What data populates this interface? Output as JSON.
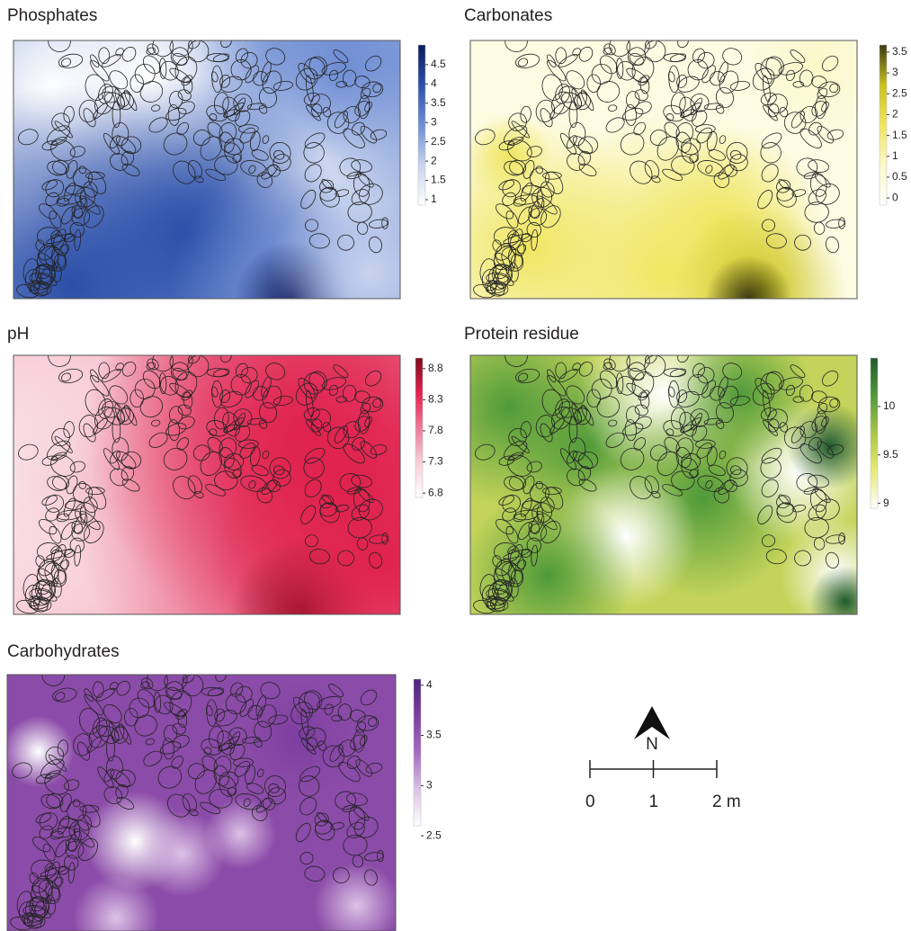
{
  "panels": [
    {
      "title": "Phosphates",
      "colorbar": {
        "lim": [
          0.86,
          5.01
        ],
        "ticks": [
          4.5,
          4,
          3.5,
          3,
          2.5,
          2,
          1.5,
          1
        ]
      }
    },
    {
      "title": "Carbonates",
      "colorbar": {
        "lim": [
          -0.17,
          3.67
        ],
        "ticks": [
          3.5,
          3,
          2.5,
          2,
          1.5,
          1,
          0.5,
          0
        ]
      }
    },
    {
      "title": "pH",
      "colorbar": {
        "lim": [
          6.73,
          8.97
        ],
        "ticks": [
          8.8,
          8.3,
          7.8,
          7.3,
          6.8
        ]
      }
    },
    {
      "title": "Protein residue",
      "colorbar": {
        "lim": [
          8.95,
          10.5
        ],
        "ticks": [
          10,
          9.5,
          9
        ]
      }
    },
    {
      "title": "Carbohydrates",
      "colorbar": {
        "lim": [
          2.6,
          4.06
        ],
        "ticks": [
          4,
          3.5,
          3,
          2.5
        ]
      }
    }
  ],
  "north": "N",
  "scale_bar": {
    "lim": [
      0,
      2
    ],
    "ticks": [
      0,
      1,
      {
        "value": 2,
        "label": "2 m"
      }
    ]
  }
}
